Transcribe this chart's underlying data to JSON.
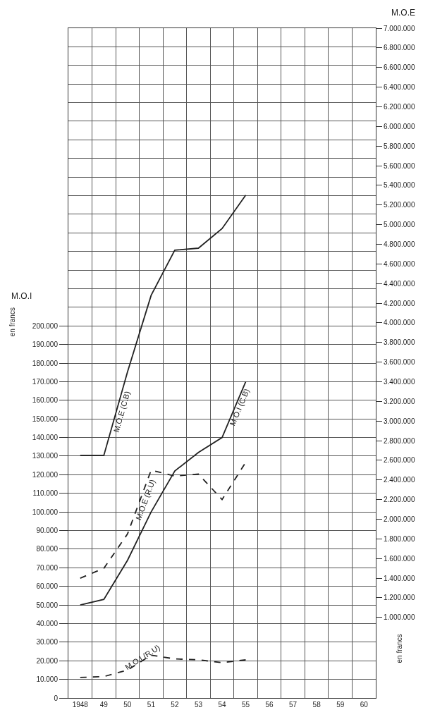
{
  "chart_data": {
    "type": "line",
    "categories": [
      "1948",
      "49",
      "50",
      "51",
      "52",
      "53",
      "54",
      "55",
      "56",
      "57",
      "58",
      "59",
      "60"
    ],
    "ylabel": "M.O.I",
    "y2label": "M.O.E",
    "annotations": [
      "en francs",
      "en francs"
    ],
    "series": [
      {
        "name": "M.O.E (C.B)",
        "color": "#222222",
        "axis": "y2",
        "line_style": "solid",
        "values": [
          2650000,
          2650000,
          3500000,
          4280000,
          4740000,
          4760000,
          4960000,
          5300000,
          null,
          null,
          null,
          null,
          null
        ]
      },
      {
        "name": "M.O.I (C.B)",
        "color": "#222222",
        "line_style": "solid",
        "values": [
          50000,
          53000,
          74000,
          100000,
          122000,
          132000,
          140000,
          170000,
          null,
          null,
          null,
          null,
          null
        ]
      },
      {
        "name": "M.O.E (R.U)",
        "color": "#222222",
        "axis": "y2",
        "line_style": "dashed",
        "values": [
          1400000,
          1500000,
          1850000,
          2500000,
          2440000,
          2460000,
          2200000,
          2580000,
          null,
          null,
          null,
          null,
          null
        ]
      },
      {
        "name": "M.O.I (R.U)",
        "color": "#222222",
        "line_style": "dashed",
        "values": [
          11000,
          11500,
          15000,
          23000,
          21000,
          20500,
          19000,
          20500,
          null,
          null,
          null,
          null,
          null
        ]
      }
    ],
    "ylim": [
      0,
      360000
    ],
    "yticks": [
      0,
      {
        "value": 10000,
        "label": "10.000"
      },
      {
        "value": 20000,
        "label": "20.000"
      },
      {
        "value": 30000,
        "label": "30.000"
      },
      {
        "value": 40000,
        "label": "40.000"
      },
      {
        "value": 50000,
        "label": "50.000"
      },
      {
        "value": 60000,
        "label": "60.000"
      },
      {
        "value": 70000,
        "label": "70.000"
      },
      {
        "value": 80000,
        "label": "80.000"
      },
      {
        "value": 90000,
        "label": "90.000"
      },
      {
        "value": 100000,
        "label": "100.000"
      },
      {
        "value": 110000,
        "label": "110.000"
      },
      {
        "value": 120000,
        "label": "120.000"
      },
      {
        "value": 130000,
        "label": "130.000"
      },
      {
        "value": 140000,
        "label": "140.000"
      },
      {
        "value": 150000,
        "label": "150.000"
      },
      {
        "value": 160000,
        "label": "160.000"
      },
      {
        "value": 170000,
        "label": "170.000"
      },
      {
        "value": 180000,
        "label": "180.000"
      },
      {
        "value": 190000,
        "label": "190.000"
      },
      {
        "value": 200000,
        "label": "200.000"
      }
    ],
    "y2lim": [
      180000,
      7000000
    ],
    "y2ticks": [
      {
        "value": 1000000,
        "label": "1.000.000"
      },
      {
        "value": 1200000,
        "label": "1.200.000"
      },
      {
        "value": 1400000,
        "label": "1.400.000"
      },
      {
        "value": 1600000,
        "label": "1.600.000"
      },
      {
        "value": 1800000,
        "label": "1.800.000"
      },
      {
        "value": 2000000,
        "label": "2.000.000"
      },
      {
        "value": 2200000,
        "label": "2.200.000"
      },
      {
        "value": 2400000,
        "label": "2.400.000"
      },
      {
        "value": 2600000,
        "label": "2.600.000"
      },
      {
        "value": 2800000,
        "label": "2.800.000"
      },
      {
        "value": 3000000,
        "label": "3.000.000"
      },
      {
        "value": 3200000,
        "label": "3.200.000"
      },
      {
        "value": 3400000,
        "label": "3.400.000"
      },
      {
        "value": 3600000,
        "label": "3.600.000"
      },
      {
        "value": 3800000,
        "label": "3.800.000"
      },
      {
        "value": 4000000,
        "label": "4.000.000"
      },
      {
        "value": 4200000,
        "label": "4.200.000"
      },
      {
        "value": 4400000,
        "label": "4.400.000"
      },
      {
        "value": 4600000,
        "label": "4.600.000"
      },
      {
        "value": 4800000,
        "label": "4.800.000"
      },
      {
        "value": 5000000,
        "label": "5.000.000"
      },
      {
        "value": 5200000,
        "label": "5.200.000"
      },
      {
        "value": 5400000,
        "label": "5.400.000"
      },
      {
        "value": 5600000,
        "label": "5.600.000"
      },
      {
        "value": 5800000,
        "label": "5.800.000"
      },
      {
        "value": 6000000,
        "label": "6.000.000"
      },
      {
        "value": 6200000,
        "label": "6.200.000"
      },
      {
        "value": 6400000,
        "label": "6.400.000"
      },
      {
        "value": 6600000,
        "label": "6.600.000"
      },
      {
        "value": 6800000,
        "label": "6.800.000"
      },
      {
        "value": 7000000,
        "label": "7.000.000"
      }
    ],
    "grid": true,
    "legend": false,
    "marker": "none"
  }
}
